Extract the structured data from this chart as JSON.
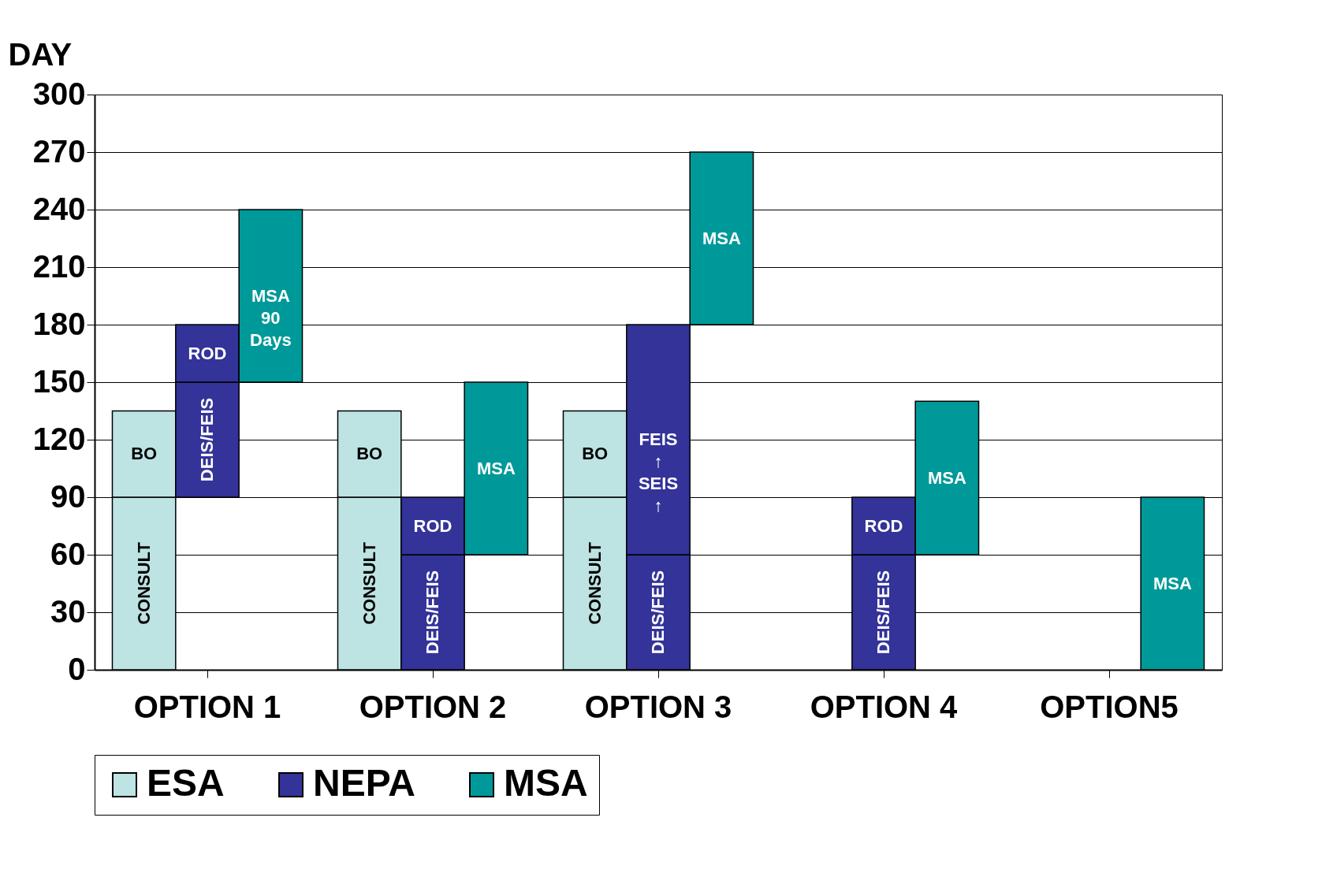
{
  "chart_data": {
    "type": "bar",
    "ylabel": "DAY",
    "categories": [
      "OPTION 1",
      "OPTION 2",
      "OPTION 3",
      "OPTION 4",
      "OPTION5"
    ],
    "ylim": [
      0,
      300
    ],
    "yticks": [
      0,
      30,
      60,
      90,
      120,
      150,
      180,
      210,
      240,
      270,
      300
    ],
    "grid": "y",
    "legend": "bottom",
    "series": [
      {
        "name": "ESA",
        "color": "#bde3e3",
        "base": [
          0,
          0,
          0,
          null,
          null
        ],
        "values": [
          90,
          90,
          90,
          null,
          null
        ],
        "value_labels": [
          "CONSULT",
          "CONSULT",
          "CONSULT",
          null,
          null
        ]
      },
      {
        "color": "#bde3e3",
        "base": [
          90,
          90,
          90,
          null,
          null
        ],
        "values": [
          45,
          45,
          45,
          null,
          null
        ],
        "value_labels": [
          "BO",
          "BO",
          "BO",
          null,
          null
        ]
      },
      {
        "name": "NEPA",
        "color": "#333399",
        "base": [
          90,
          0,
          0,
          0,
          null
        ],
        "values": [
          60,
          60,
          60,
          60,
          null
        ],
        "value_labels": [
          "DEIS/FEIS",
          "DEIS/FEIS",
          "DEIS/FEIS",
          "DEIS/FEIS",
          null
        ]
      },
      {
        "color": "#333399",
        "base": [
          150,
          60,
          60,
          60,
          null
        ],
        "values": [
          30,
          30,
          120,
          30,
          null
        ],
        "value_labels": [
          "ROD",
          "ROD",
          "FEIS ↑ SEIS ↑",
          "ROD",
          null
        ]
      },
      {
        "name": "MSA",
        "color": "#009999",
        "base": [
          150,
          60,
          180,
          60,
          0
        ],
        "values": [
          90,
          90,
          90,
          80,
          90
        ],
        "value_labels": [
          "MSA 90 Days",
          "MSA",
          "MSA",
          "MSA",
          "MSA"
        ]
      }
    ]
  }
}
